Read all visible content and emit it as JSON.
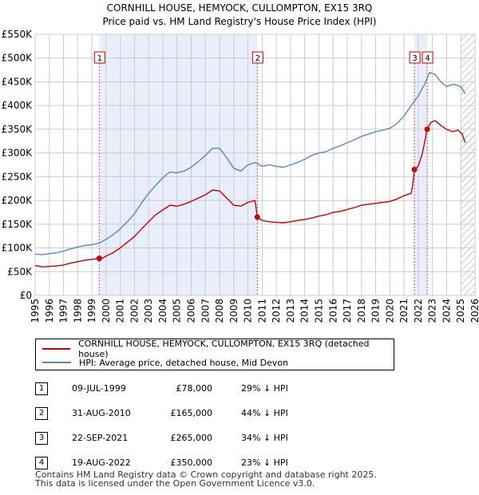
{
  "chart_data": {
    "type": "line",
    "title": "CORNHILL HOUSE, HEMYOCK, CULLOMPTON, EX15 3RQ",
    "subtitle": "Price paid vs. HM Land Registry's House Price Index (HPI)",
    "xlim": [
      1995,
      2026
    ],
    "ylim": [
      0,
      550000
    ],
    "x_ticks": [
      "1995",
      "1996",
      "1997",
      "1998",
      "1999",
      "2000",
      "2001",
      "2002",
      "2003",
      "2004",
      "2005",
      "2006",
      "2007",
      "2008",
      "2009",
      "2010",
      "2011",
      "2012",
      "2013",
      "2014",
      "2015",
      "2016",
      "2017",
      "2018",
      "2019",
      "2020",
      "2021",
      "2022",
      "2023",
      "2024",
      "2025",
      "2026"
    ],
    "y_ticks": [
      {
        "value": 0,
        "label": "£0"
      },
      {
        "value": 50000,
        "label": "£50K"
      },
      {
        "value": 100000,
        "label": "£100K"
      },
      {
        "value": 150000,
        "label": "£150K"
      },
      {
        "value": 200000,
        "label": "£200K"
      },
      {
        "value": 250000,
        "label": "£250K"
      },
      {
        "value": 300000,
        "label": "£300K"
      },
      {
        "value": 350000,
        "label": "£350K"
      },
      {
        "value": 400000,
        "label": "£400K"
      },
      {
        "value": 450000,
        "label": "£450K"
      },
      {
        "value": 500000,
        "label": "£500K"
      },
      {
        "value": 550000,
        "label": "£550K"
      }
    ],
    "grid": true,
    "shaded_periods": [
      [
        1999.52,
        2010.66
      ],
      [
        2021.73,
        2022.63
      ]
    ],
    "hatched_from": 2025.0,
    "series": [
      {
        "name": "CORNHILL HOUSE, HEMYOCK, CULLOMPTON, EX15 3RQ (detached house)",
        "color": "#cc0000",
        "points": [
          [
            1995.0,
            63000
          ],
          [
            1995.5,
            60000
          ],
          [
            1996.0,
            61000
          ],
          [
            1996.5,
            62000
          ],
          [
            1997.0,
            64000
          ],
          [
            1997.5,
            68000
          ],
          [
            1998.0,
            71000
          ],
          [
            1998.5,
            74000
          ],
          [
            1999.0,
            76000
          ],
          [
            1999.52,
            78000
          ],
          [
            1999.8,
            79000
          ],
          [
            2000.0,
            83000
          ],
          [
            2000.5,
            90000
          ],
          [
            2001.0,
            100000
          ],
          [
            2001.5,
            112000
          ],
          [
            2002.0,
            124000
          ],
          [
            2002.5,
            140000
          ],
          [
            2003.0,
            155000
          ],
          [
            2003.5,
            170000
          ],
          [
            2004.0,
            180000
          ],
          [
            2004.5,
            190000
          ],
          [
            2005.0,
            188000
          ],
          [
            2005.5,
            192000
          ],
          [
            2006.0,
            198000
          ],
          [
            2006.5,
            205000
          ],
          [
            2007.0,
            212000
          ],
          [
            2007.5,
            222000
          ],
          [
            2008.0,
            220000
          ],
          [
            2008.5,
            205000
          ],
          [
            2009.0,
            190000
          ],
          [
            2009.5,
            188000
          ],
          [
            2010.0,
            196000
          ],
          [
            2010.5,
            200000
          ],
          [
            2010.66,
            165000
          ],
          [
            2011.0,
            158000
          ],
          [
            2011.5,
            155000
          ],
          [
            2012.0,
            154000
          ],
          [
            2012.5,
            153000
          ],
          [
            2013.0,
            155000
          ],
          [
            2013.5,
            158000
          ],
          [
            2014.0,
            160000
          ],
          [
            2014.5,
            163000
          ],
          [
            2015.0,
            167000
          ],
          [
            2015.5,
            170000
          ],
          [
            2016.0,
            175000
          ],
          [
            2016.5,
            177000
          ],
          [
            2017.0,
            181000
          ],
          [
            2017.5,
            185000
          ],
          [
            2018.0,
            190000
          ],
          [
            2018.5,
            192000
          ],
          [
            2019.0,
            194000
          ],
          [
            2019.5,
            196000
          ],
          [
            2020.0,
            198000
          ],
          [
            2020.5,
            203000
          ],
          [
            2021.0,
            210000
          ],
          [
            2021.5,
            215000
          ],
          [
            2021.6,
            230000
          ],
          [
            2021.73,
            265000
          ],
          [
            2022.0,
            272000
          ],
          [
            2022.3,
            300000
          ],
          [
            2022.63,
            350000
          ],
          [
            2022.9,
            365000
          ],
          [
            2023.2,
            368000
          ],
          [
            2023.6,
            358000
          ],
          [
            2024.0,
            350000
          ],
          [
            2024.4,
            345000
          ],
          [
            2024.8,
            348000
          ],
          [
            2025.1,
            340000
          ],
          [
            2025.3,
            322000
          ]
        ]
      },
      {
        "name": "HPI: Average price, detached house, Mid Devon",
        "color": "#5588cc",
        "points": [
          [
            1995.0,
            87000
          ],
          [
            1995.5,
            86000
          ],
          [
            1996.0,
            88000
          ],
          [
            1996.5,
            90000
          ],
          [
            1997.0,
            93000
          ],
          [
            1997.5,
            98000
          ],
          [
            1998.0,
            102000
          ],
          [
            1998.5,
            105000
          ],
          [
            1999.0,
            107000
          ],
          [
            1999.5,
            110000
          ],
          [
            2000.0,
            118000
          ],
          [
            2000.5,
            128000
          ],
          [
            2001.0,
            140000
          ],
          [
            2001.5,
            155000
          ],
          [
            2002.0,
            172000
          ],
          [
            2002.5,
            195000
          ],
          [
            2003.0,
            215000
          ],
          [
            2003.5,
            232000
          ],
          [
            2004.0,
            248000
          ],
          [
            2004.5,
            260000
          ],
          [
            2005.0,
            258000
          ],
          [
            2005.5,
            262000
          ],
          [
            2006.0,
            270000
          ],
          [
            2006.5,
            282000
          ],
          [
            2007.0,
            295000
          ],
          [
            2007.5,
            310000
          ],
          [
            2008.0,
            310000
          ],
          [
            2008.5,
            290000
          ],
          [
            2009.0,
            268000
          ],
          [
            2009.5,
            262000
          ],
          [
            2010.0,
            275000
          ],
          [
            2010.5,
            280000
          ],
          [
            2011.0,
            272000
          ],
          [
            2011.5,
            275000
          ],
          [
            2012.0,
            272000
          ],
          [
            2012.5,
            270000
          ],
          [
            2013.0,
            275000
          ],
          [
            2013.5,
            280000
          ],
          [
            2014.0,
            287000
          ],
          [
            2014.5,
            295000
          ],
          [
            2015.0,
            300000
          ],
          [
            2015.5,
            303000
          ],
          [
            2016.0,
            310000
          ],
          [
            2016.5,
            315000
          ],
          [
            2017.0,
            322000
          ],
          [
            2017.5,
            328000
          ],
          [
            2018.0,
            335000
          ],
          [
            2018.5,
            340000
          ],
          [
            2019.0,
            345000
          ],
          [
            2019.5,
            348000
          ],
          [
            2020.0,
            352000
          ],
          [
            2020.5,
            362000
          ],
          [
            2021.0,
            378000
          ],
          [
            2021.5,
            400000
          ],
          [
            2022.0,
            420000
          ],
          [
            2022.5,
            448000
          ],
          [
            2022.8,
            470000
          ],
          [
            2023.2,
            465000
          ],
          [
            2023.6,
            450000
          ],
          [
            2024.0,
            440000
          ],
          [
            2024.5,
            445000
          ],
          [
            2025.0,
            440000
          ],
          [
            2025.3,
            425000
          ]
        ]
      }
    ],
    "sales": [
      {
        "label": "1",
        "year": 1999.52,
        "price": 78000
      },
      {
        "label": "2",
        "year": 2010.66,
        "price": 165000
      },
      {
        "label": "3",
        "year": 2021.73,
        "price": 265000
      },
      {
        "label": "4",
        "year": 2022.63,
        "price": 350000
      }
    ]
  },
  "legend": {
    "red_label": "CORNHILL HOUSE, HEMYOCK, CULLOMPTON, EX15 3RQ (detached house)",
    "blue_label": "HPI: Average price, detached house, Mid Devon"
  },
  "table": [
    {
      "num": "1",
      "date": "09-JUL-1999",
      "price": "£78,000",
      "hpi": "29% ↓ HPI"
    },
    {
      "num": "2",
      "date": "31-AUG-2010",
      "price": "£165,000",
      "hpi": "44% ↓ HPI"
    },
    {
      "num": "3",
      "date": "22-SEP-2021",
      "price": "£265,000",
      "hpi": "34% ↓ HPI"
    },
    {
      "num": "4",
      "date": "19-AUG-2022",
      "price": "£350,000",
      "hpi": "23% ↓ HPI"
    }
  ],
  "footer": {
    "line1": "Contains HM Land Registry data © Crown copyright and database right 2025.",
    "line2": "This data is licensed under the Open Government Licence v3.0."
  }
}
